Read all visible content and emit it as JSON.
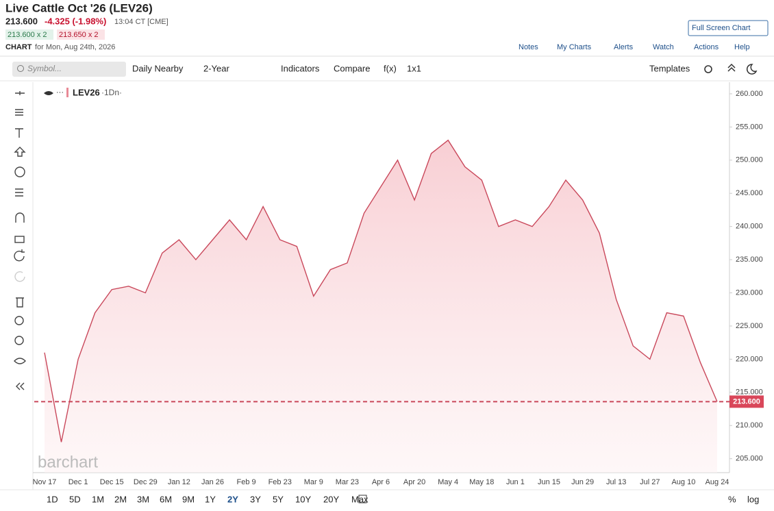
{
  "header": {
    "title": "Live Cattle Oct '26 (LEV26)",
    "price": "213.600",
    "change": "-4.325 (-1.98%)",
    "time": "13:04 CT [CME]",
    "bid": "213.600 x 2",
    "ask": "213.650 x 2",
    "chart_label": "CHART",
    "chart_date": "for Mon, Aug 24th, 2026",
    "full_screen": "Full Screen Chart",
    "links": [
      "Notes",
      "My Charts",
      "Alerts",
      "Watch",
      "Actions",
      "Help"
    ]
  },
  "toolbar": {
    "search": "Symbol...",
    "items": [
      "Daily Nearby",
      "2-Year",
      "Indicators",
      "Compare",
      "f(x)",
      "1x1"
    ],
    "templates": "Templates"
  },
  "legend": {
    "symbol": "LEV26",
    "interval": "·1Dn·"
  },
  "watermark": "barchart",
  "ranges": [
    "1D",
    "5D",
    "1M",
    "2M",
    "3M",
    "6M",
    "9M",
    "1Y",
    "2Y",
    "3Y",
    "5Y",
    "10Y",
    "20Y",
    "Max"
  ],
  "active_range": "2Y",
  "scale_buttons": [
    "%",
    "log"
  ],
  "chart_data": {
    "type": "area",
    "color": "#c9485b",
    "categories": [
      "Nov 17",
      null,
      "Dec 1",
      null,
      "Dec 15",
      null,
      "Dec 29",
      null,
      "Jan 12",
      null,
      "Jan 26",
      null,
      "Feb 9",
      null,
      "Feb 23",
      null,
      "Mar 9",
      null,
      "Mar 23",
      null,
      "Apr 6",
      null,
      "Apr 20",
      null,
      "May 4",
      null,
      "May 18",
      null,
      "Jun 1",
      null,
      "Jun 15",
      null,
      "Jun 29",
      null,
      "Jul 13",
      null,
      "Jul 27",
      null,
      "Aug 10",
      null,
      "Aug 24"
    ],
    "values": [
      221,
      207.5,
      220,
      227,
      230.5,
      231,
      230,
      236,
      238,
      235,
      238,
      241,
      238,
      243,
      238,
      237,
      229.5,
      233.5,
      234.5,
      242,
      246,
      250,
      244,
      251,
      253,
      249,
      247,
      240,
      241,
      240,
      243,
      247,
      244,
      239,
      229,
      222,
      220,
      227,
      226.5,
      219.5,
      213.6
    ],
    "last": 213.6,
    "last_label": "213.600",
    "ylim": [
      202.9,
      261.75
    ],
    "yticks": [
      {
        "value": 205,
        "label": "205.000"
      },
      {
        "value": 210,
        "label": "210.000"
      },
      {
        "value": 215,
        "label": "215.000"
      },
      {
        "value": 220,
        "label": "220.000"
      },
      {
        "value": 225,
        "label": "225.000"
      },
      {
        "value": 230,
        "label": "230.000"
      },
      {
        "value": 235,
        "label": "235.000"
      },
      {
        "value": 240,
        "label": "240.000"
      },
      {
        "value": 245,
        "label": "245.000"
      },
      {
        "value": 250,
        "label": "250.000"
      },
      {
        "value": 255,
        "label": "255.000"
      },
      {
        "value": 260,
        "label": "260.000"
      }
    ]
  }
}
